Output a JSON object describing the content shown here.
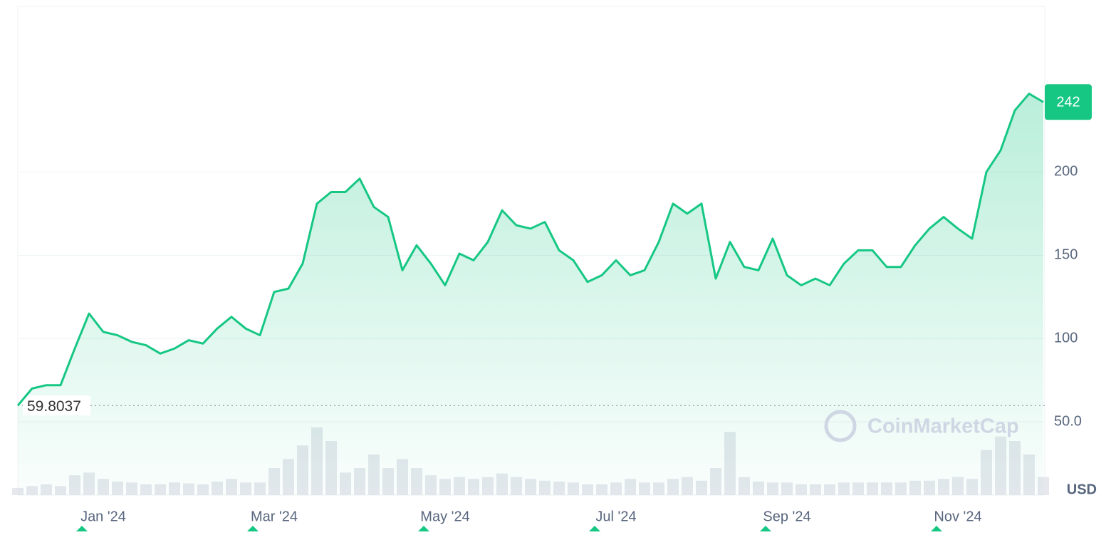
{
  "chart_data": {
    "type": "line",
    "categories": [
      null,
      null,
      null,
      null,
      null,
      null,
      "Jan '24",
      null,
      null,
      null,
      null,
      null,
      null,
      null,
      null,
      null,
      null,
      null,
      "Mar '24",
      null,
      null,
      null,
      null,
      null,
      null,
      null,
      null,
      null,
      null,
      null,
      "May '24",
      null,
      null,
      null,
      null,
      null,
      null,
      null,
      null,
      null,
      null,
      null,
      "Jul '24",
      null,
      null,
      null,
      null,
      null,
      null,
      null,
      null,
      null,
      null,
      null,
      "Sep '24",
      null,
      null,
      null,
      null,
      null,
      null,
      null,
      null,
      null,
      null,
      null,
      "Nov '24",
      null,
      null,
      null,
      null,
      null,
      null
    ],
    "values": [
      59.8037,
      70,
      72,
      72,
      94,
      115,
      104,
      102,
      98,
      96,
      91,
      94,
      99,
      97,
      106,
      113,
      106,
      102,
      128,
      130,
      145,
      181,
      188,
      188,
      196,
      179,
      173,
      141,
      156,
      145,
      132,
      151,
      147,
      158,
      177,
      168,
      166,
      170,
      153,
      147,
      134,
      138,
      147,
      138,
      141,
      158,
      181,
      175,
      181,
      136,
      158,
      143,
      141,
      160,
      138,
      132,
      136,
      132,
      145,
      153,
      153,
      143,
      143,
      156,
      166,
      173,
      166,
      160,
      200,
      213,
      237,
      247,
      242
    ],
    "volume": [
      8,
      10,
      12,
      10,
      22,
      25,
      18,
      15,
      14,
      12,
      12,
      14,
      13,
      12,
      15,
      18,
      14,
      14,
      30,
      40,
      55,
      75,
      60,
      25,
      30,
      45,
      30,
      40,
      30,
      22,
      18,
      20,
      18,
      20,
      24,
      20,
      18,
      16,
      15,
      14,
      12,
      12,
      14,
      18,
      14,
      14,
      18,
      20,
      16,
      30,
      70,
      20,
      15,
      14,
      14,
      12,
      12,
      12,
      14,
      14,
      14,
      14,
      14,
      16,
      16,
      18,
      20,
      18,
      50,
      65,
      60,
      45,
      20
    ],
    "color": "#16c784",
    "ylim": [
      6,
      299
    ],
    "yticks": [
      {
        "value": 50,
        "label": "50.0"
      },
      100,
      150,
      200
    ],
    "grid": true,
    "start_value": 59.8037,
    "currency": "USD",
    "watermark": "CoinMarketCap"
  }
}
